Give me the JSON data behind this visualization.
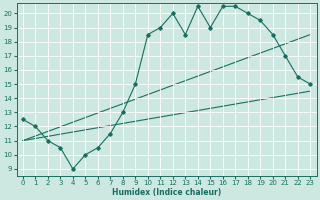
{
  "title": "",
  "xlabel": "Humidex (Indice chaleur)",
  "bg_color": "#cce8e0",
  "grid_color": "#ffffff",
  "line_color": "#1a6e60",
  "xlim": [
    -0.5,
    23.5
  ],
  "ylim": [
    8.5,
    20.7
  ],
  "yticks": [
    9,
    10,
    11,
    12,
    13,
    14,
    15,
    16,
    17,
    18,
    19,
    20
  ],
  "xticks": [
    0,
    1,
    2,
    3,
    4,
    5,
    6,
    7,
    8,
    9,
    10,
    11,
    12,
    13,
    14,
    15,
    16,
    17,
    18,
    19,
    20,
    21,
    22,
    23
  ],
  "line1_x": [
    0,
    1,
    2,
    3,
    4,
    5,
    6,
    7,
    8,
    9,
    10,
    11,
    12,
    13,
    14,
    15,
    16,
    17,
    18,
    19,
    20,
    21,
    22,
    23
  ],
  "line1_y": [
    12.5,
    12.0,
    11.0,
    10.5,
    9.0,
    10.0,
    10.5,
    11.5,
    13.0,
    15.0,
    18.5,
    19.0,
    20.0,
    18.5,
    20.5,
    19.0,
    20.5,
    20.5,
    20.0,
    19.5,
    18.5,
    17.0,
    15.5,
    15.0
  ],
  "line2_x": [
    0,
    23
  ],
  "line2_y": [
    11.0,
    18.5
  ],
  "line3_x": [
    0,
    23
  ],
  "line3_y": [
    11.0,
    14.5
  ],
  "xlabel_fontsize": 5.5,
  "tick_fontsize": 5.0
}
